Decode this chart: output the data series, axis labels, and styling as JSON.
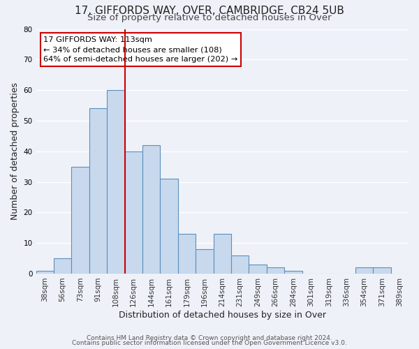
{
  "title": "17, GIFFORDS WAY, OVER, CAMBRIDGE, CB24 5UB",
  "subtitle": "Size of property relative to detached houses in Over",
  "xlabel": "Distribution of detached houses by size in Over",
  "ylabel": "Number of detached properties",
  "bar_color": "#c8d9ed",
  "bar_edge_color": "#5b8fbe",
  "categories": [
    "38sqm",
    "56sqm",
    "73sqm",
    "91sqm",
    "108sqm",
    "126sqm",
    "144sqm",
    "161sqm",
    "179sqm",
    "196sqm",
    "214sqm",
    "231sqm",
    "249sqm",
    "266sqm",
    "284sqm",
    "301sqm",
    "319sqm",
    "336sqm",
    "354sqm",
    "371sqm",
    "389sqm"
  ],
  "values": [
    1,
    5,
    35,
    54,
    60,
    40,
    42,
    31,
    13,
    8,
    13,
    6,
    3,
    2,
    1,
    0,
    0,
    0,
    2,
    2,
    0
  ],
  "ylim": [
    0,
    80
  ],
  "yticks": [
    0,
    10,
    20,
    30,
    40,
    50,
    60,
    70,
    80
  ],
  "vline_x": 4.5,
  "vline_color": "#cc0000",
  "annotation_title": "17 GIFFORDS WAY: 113sqm",
  "annotation_line1": "← 34% of detached houses are smaller (108)",
  "annotation_line2": "64% of semi-detached houses are larger (202) →",
  "annotation_box_color": "#ffffff",
  "annotation_box_edge": "#cc0000",
  "footer1": "Contains HM Land Registry data © Crown copyright and database right 2024.",
  "footer2": "Contains public sector information licensed under the Open Government Licence v3.0.",
  "bg_color": "#eef2f8",
  "grid_color": "#ffffff",
  "title_fontsize": 11,
  "subtitle_fontsize": 9.5,
  "axis_label_fontsize": 9,
  "tick_fontsize": 7.5,
  "footer_fontsize": 6.5
}
